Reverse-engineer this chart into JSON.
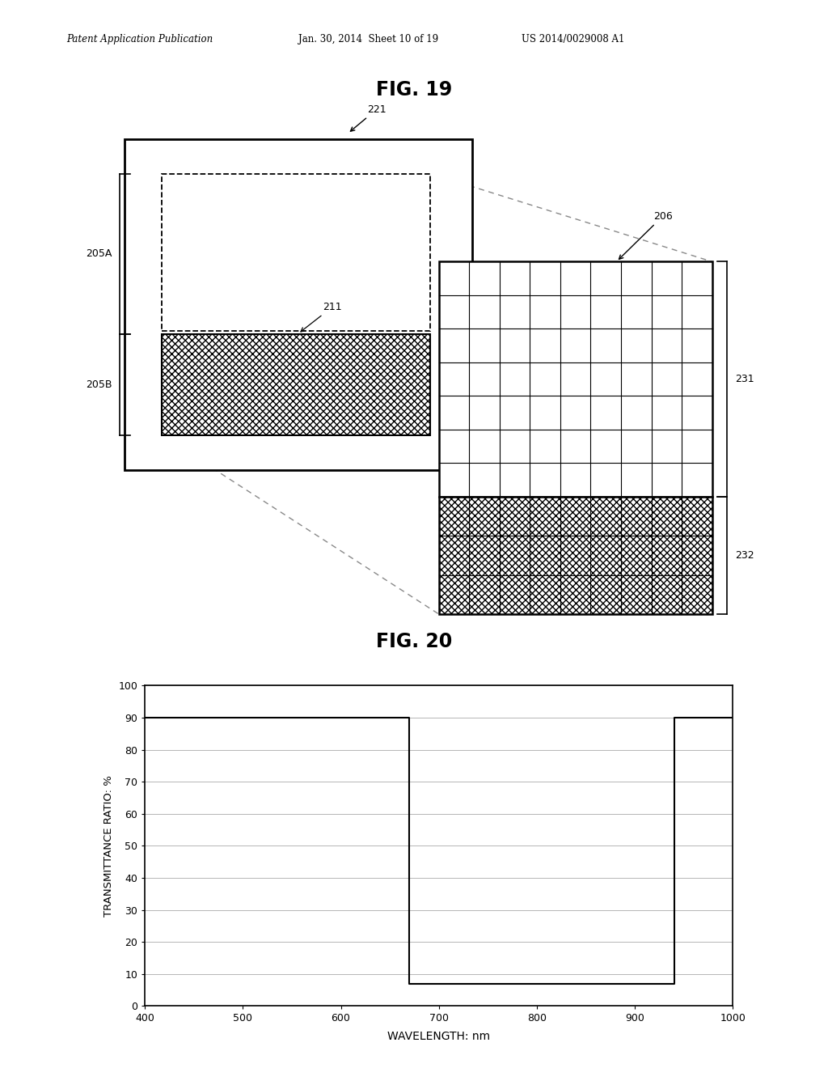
{
  "background_color": "#ffffff",
  "header_left": "Patent Application Publication",
  "header_mid": "Jan. 30, 2014  Sheet 10 of 19",
  "header_right": "US 2014/0029008 A1",
  "fig19_title": "FIG. 19",
  "fig20_title": "FIG. 20",
  "graph_xlabel": "WAVELENGTH: nm",
  "graph_ylabel": "TRANSMITTANCE RATIO: %",
  "graph_xlim": [
    400,
    1000
  ],
  "graph_ylim": [
    0,
    100
  ],
  "graph_xticks": [
    400,
    500,
    600,
    700,
    800,
    900,
    1000
  ],
  "graph_yticks": [
    0,
    10,
    20,
    30,
    40,
    50,
    60,
    70,
    80,
    90,
    100
  ],
  "line_x": [
    400,
    670,
    670,
    940,
    940,
    1000
  ],
  "line_y": [
    90,
    90,
    7,
    7,
    90,
    90
  ]
}
